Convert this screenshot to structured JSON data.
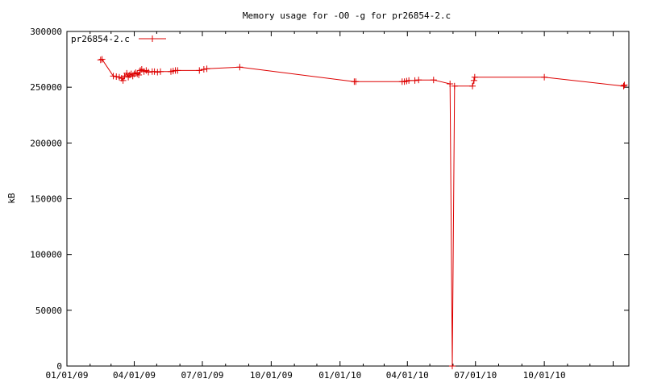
{
  "chart_data": {
    "type": "line",
    "title": "Memory usage for -O0 -g for pr26854-2.c",
    "xlabel": "",
    "ylabel": "kB",
    "x_tick_labels": [
      "01/01/09",
      "04/01/09",
      "07/01/09",
      "10/01/09",
      "01/01/10",
      "04/01/10",
      "07/01/10",
      "10/01/10"
    ],
    "xlim": [
      "2009-01-01",
      "2011-01-22"
    ],
    "ylim": [
      0,
      300000
    ],
    "y_ticks": [
      0,
      50000,
      100000,
      150000,
      200000,
      250000,
      300000
    ],
    "grid": false,
    "legend_position": "top-left",
    "series": [
      {
        "name": "pr26854-2.c",
        "color": "#dd0000",
        "marker": "plus",
        "x": [
          "2009-02-15",
          "2009-02-17",
          "2009-03-04",
          "2009-03-08",
          "2009-03-12",
          "2009-03-15",
          "2009-03-17",
          "2009-03-19",
          "2009-03-22",
          "2009-03-24",
          "2009-03-26",
          "2009-03-28",
          "2009-03-30",
          "2009-04-01",
          "2009-04-03",
          "2009-04-05",
          "2009-04-07",
          "2009-04-09",
          "2009-04-11",
          "2009-04-14",
          "2009-04-17",
          "2009-04-20",
          "2009-04-25",
          "2009-04-28",
          "2009-05-02",
          "2009-05-06",
          "2009-05-20",
          "2009-05-23",
          "2009-05-26",
          "2009-05-29",
          "2009-06-27",
          "2009-07-03",
          "2009-07-07",
          "2009-08-20",
          "2010-01-20",
          "2010-01-22",
          "2010-03-25",
          "2010-03-28",
          "2010-03-31",
          "2010-04-03",
          "2010-04-11",
          "2010-04-16",
          "2010-05-06",
          "2010-05-28",
          "2010-05-31",
          "2010-06-03",
          "2010-06-27",
          "2010-06-29",
          "2010-06-30",
          "2010-10-01",
          "2011-01-15",
          "2011-01-16"
        ],
        "y": [
          274500,
          275000,
          260000,
          259500,
          259000,
          258000,
          256000,
          260000,
          262500,
          259000,
          261000,
          262000,
          260000,
          262000,
          263000,
          262000,
          261000,
          265000,
          266000,
          264000,
          265000,
          263500,
          264000,
          264000,
          263500,
          264000,
          264000,
          264500,
          265000,
          265000,
          265000,
          266000,
          266500,
          268000,
          255000,
          255000,
          255000,
          255000,
          255500,
          256000,
          256000,
          256500,
          256500,
          253000,
          0,
          251000,
          251000,
          256000,
          259000,
          259000,
          251000,
          252000
        ]
      }
    ]
  }
}
